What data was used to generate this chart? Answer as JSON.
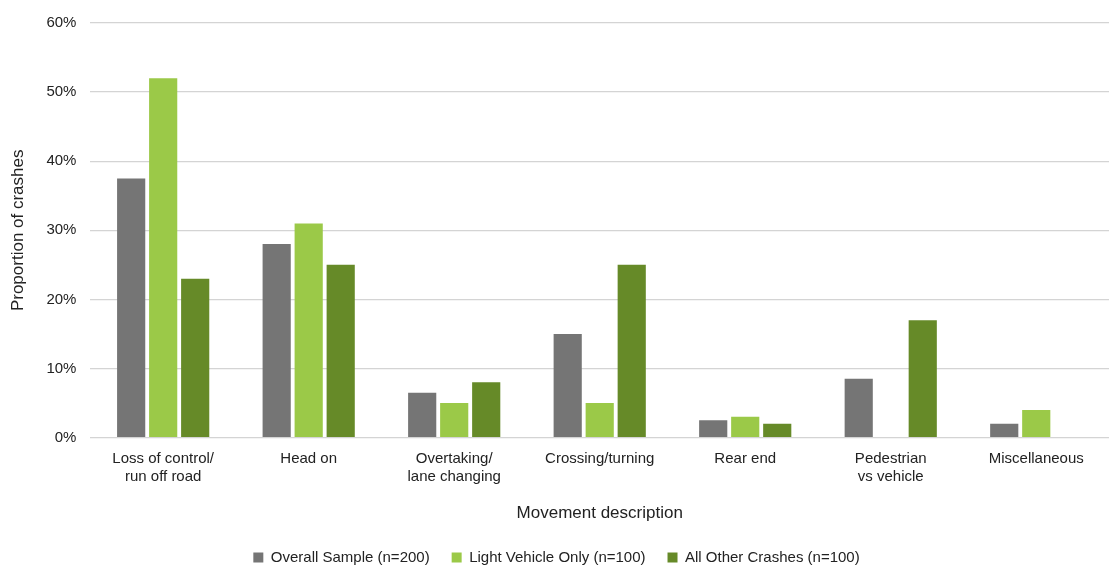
{
  "chart_data": {
    "type": "bar",
    "xlabel": "Movement description",
    "ylabel": "Proportion of crashes",
    "categories": [
      "Loss of control/\nrun off road",
      "Head on",
      "Overtaking/\nlane changing",
      "Crossing/turning",
      "Rear end",
      "Pedestrian\nvs vehicle",
      "Miscellaneous"
    ],
    "series": [
      {
        "name": "Overall Sample (n=200)",
        "color": "#757575",
        "values": [
          37.5,
          28,
          6.5,
          15,
          2.5,
          8.5,
          2
        ]
      },
      {
        "name": "Light Vehicle Only (n=100)",
        "color": "#9bc948",
        "values": [
          52,
          31,
          5,
          5,
          3,
          0,
          4
        ]
      },
      {
        "name": "All Other Crashes (n=100)",
        "color": "#668a28",
        "values": [
          23,
          25,
          8,
          25,
          2,
          17,
          0
        ]
      }
    ],
    "ylim": [
      0,
      60
    ],
    "yticks": [
      {
        "value": 0,
        "label": "0%"
      },
      {
        "value": 10,
        "label": "10%"
      },
      {
        "value": 20,
        "label": "20%"
      },
      {
        "value": 30,
        "label": "30%"
      },
      {
        "value": 40,
        "label": "40%"
      },
      {
        "value": 50,
        "label": "50%"
      },
      {
        "value": 60,
        "label": "60%"
      }
    ],
    "grid": "y",
    "legend": "bottom"
  }
}
